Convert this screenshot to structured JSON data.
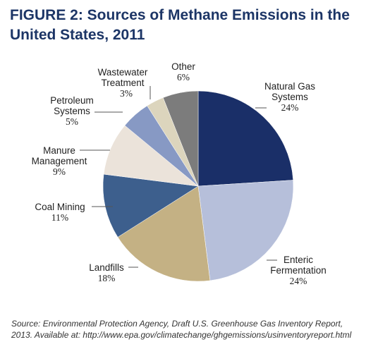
{
  "title": "FIGURE 2: Sources of Methane Emissions in the United States, 2011",
  "source_note": "Source: Environmental Protection Agency, Draft U.S. Greenhouse Gas Inventory Report, 2013. Available at: http://www.epa.gov/climatechange/ghgemissions/usinventoryreport.html",
  "chart_data": {
    "type": "pie",
    "title": "FIGURE 2: Sources of Methane Emissions in the United States, 2011",
    "slices": [
      {
        "label": "Natural Gas Systems",
        "value": 24,
        "value_label": "24%",
        "color": "#1a2f68"
      },
      {
        "label": "Enteric Fermentation",
        "value": 24,
        "value_label": "24%",
        "color": "#b6bfda"
      },
      {
        "label": "Landfills",
        "value": 18,
        "value_label": "18%",
        "color": "#c4b184"
      },
      {
        "label": "Coal Mining",
        "value": 11,
        "value_label": "11%",
        "color": "#3d5f8d"
      },
      {
        "label": "Manure Management",
        "value": 9,
        "value_label": "9%",
        "color": "#ebe3da"
      },
      {
        "label": "Petroleum Systems",
        "value": 5,
        "value_label": "5%",
        "color": "#8799c4"
      },
      {
        "label": "Wastewater Treatment",
        "value": 3,
        "value_label": "3%",
        "color": "#dcd5bd"
      },
      {
        "label": "Other",
        "value": 6,
        "value_label": "6%",
        "color": "#7c7c7c"
      }
    ]
  }
}
